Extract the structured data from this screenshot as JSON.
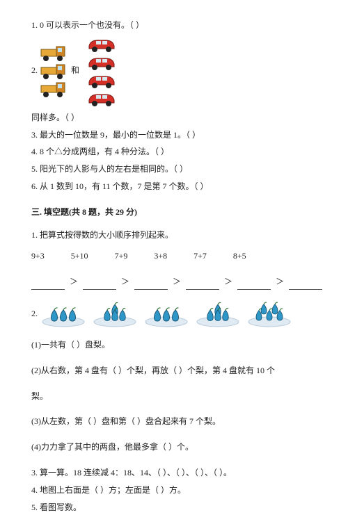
{
  "q1": "1. 0 可以表示一个也没有。（        ）",
  "q2a": "2.",
  "q2b": "和",
  "q2c": "同样多。（        ）",
  "q3": "3. 最大的一位数是 9，最小的一位数是 1。（        ）",
  "q4": "4. 8 个△分成两组，有 4 种分法。（        ）",
  "q5": "5. 阳光下的人影与人的左右是相同的。（        ）",
  "q6": "6. 从 1 数到 10，有 11 个数，7 是第 7 个数。（        ）",
  "section3": "三. 填空题(共 8 题，共 29 分)",
  "p1": "1. 把算式按得数的大小顺序排列起来。",
  "expr": {
    "a": "9+3",
    "b": "5+10",
    "c": "7+9",
    "d": "3+8",
    "e": "7+7",
    "f": "8+5"
  },
  "gt": "＞",
  "p2": "2.",
  "p2_1": "(1)一共有（        ）盘梨。",
  "p2_2": "(2)从右数，第 4 盘有（        ）个梨，再放（        ）个梨，第 4 盘就有 10 个",
  "p2_2b": "梨。",
  "p2_3": "(3)从左数，第（        ）盘和第（        ）盘合起来有 7 个梨。",
  "p2_4": "(4)力力拿了其中的两盘，他最多拿（        ）个。",
  "p3": "3. 算一算。18 连续减 4：18、14、（        ）、（        ）、（        ）、（        ）。",
  "p4": "4. 地图上右面是（        ）方；左面是（        ）方。",
  "p5": "5. 看图写数。",
  "colors": {
    "truck_body": "#e8a838",
    "truck_cab": "#d08424",
    "wheel": "#222",
    "car_body": "#d43028",
    "car_wheel": "#222",
    "plate": "#dfeaf3",
    "plate_rim": "#b7c9da",
    "pear": "#2f97c8",
    "pear_leaf": "#2a7030"
  },
  "plates": [
    3,
    4,
    3,
    4,
    5
  ]
}
